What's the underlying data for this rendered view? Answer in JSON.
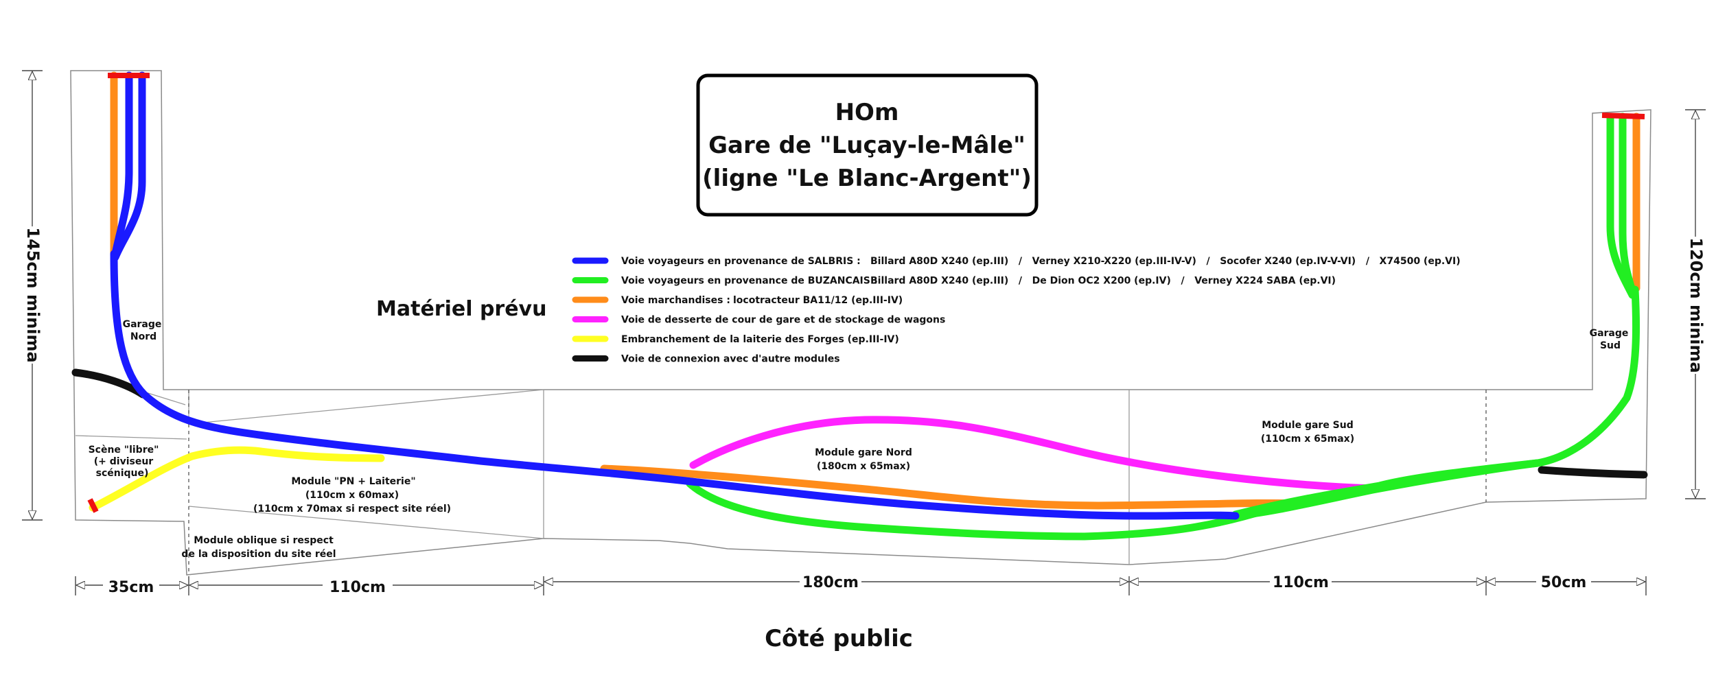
{
  "title": {
    "line1": "HOm",
    "line2": "Gare de \"Luçay-le-Mâle\"",
    "line3": "(ligne \"Le Blanc-Argent\")"
  },
  "materiel_heading": "Matériel prévu",
  "legend": [
    {
      "label": "Voie voyageurs en provenance de SALBRIS :",
      "detail": "Billard A80D X240 (ep.III)   /   Verney X210-X220 (ep.III-IV-V)   /   Socofer X240 (ep.IV-V-VI)   /   X74500 (ep.VI)",
      "color": "#1a1aff"
    },
    {
      "label": "Voie voyageurs en provenance de BUZANCAIS :",
      "detail": "Billard A80D X240 (ep.III)   /   De Dion OC2 X200 (ep.IV)   /   Verney X224 SABA (ep.VI)",
      "color": "#22ee22"
    },
    {
      "label": "Voie marchandises :",
      "detail": "locotracteur BA11/12 (ep.III-IV)",
      "color": "#ff8c1a"
    },
    {
      "label": "Voie de desserte de cour de gare et de stockage de wagons",
      "detail": "",
      "color": "#ff22ff"
    },
    {
      "label": "Embranchement de la laiterie des Forges (ep.III-IV)",
      "detail": "",
      "color": "#ffff22"
    },
    {
      "label": "Voie de connexion avec d'autre modules",
      "detail": "",
      "color": "#111111"
    }
  ],
  "colors": {
    "blue": "#1a1aff",
    "green": "#22ee22",
    "orange": "#ff8c1a",
    "magenta": "#ff22ff",
    "yellow": "#ffff22",
    "black": "#111111",
    "red": "#ee1111"
  },
  "labels": {
    "garage_nord": [
      "Garage",
      "Nord"
    ],
    "garage_sud": [
      "Garage",
      "Sud"
    ],
    "scene_libre": [
      "Scène \"libre\"",
      "(+ diviseur",
      "scénique)"
    ],
    "module_pn": [
      "Module \"PN + Laiterie\"",
      "(110cm x 60max)",
      "(110cm x 70max si respect site réel)"
    ],
    "module_oblique": [
      "Module oblique si respect",
      "de la disposition du site réel"
    ],
    "module_gare_nord": [
      "Module gare Nord",
      "(180cm x 65max)"
    ],
    "module_gare_sud": [
      "Module gare Sud",
      "(110cm x 65max)"
    ]
  },
  "dimensions": {
    "left_height": "145cm minima",
    "right_height": "120cm minima",
    "widths": [
      "35cm",
      "110cm",
      "180cm",
      "110cm",
      "50cm"
    ]
  },
  "footer": "Côté public"
}
